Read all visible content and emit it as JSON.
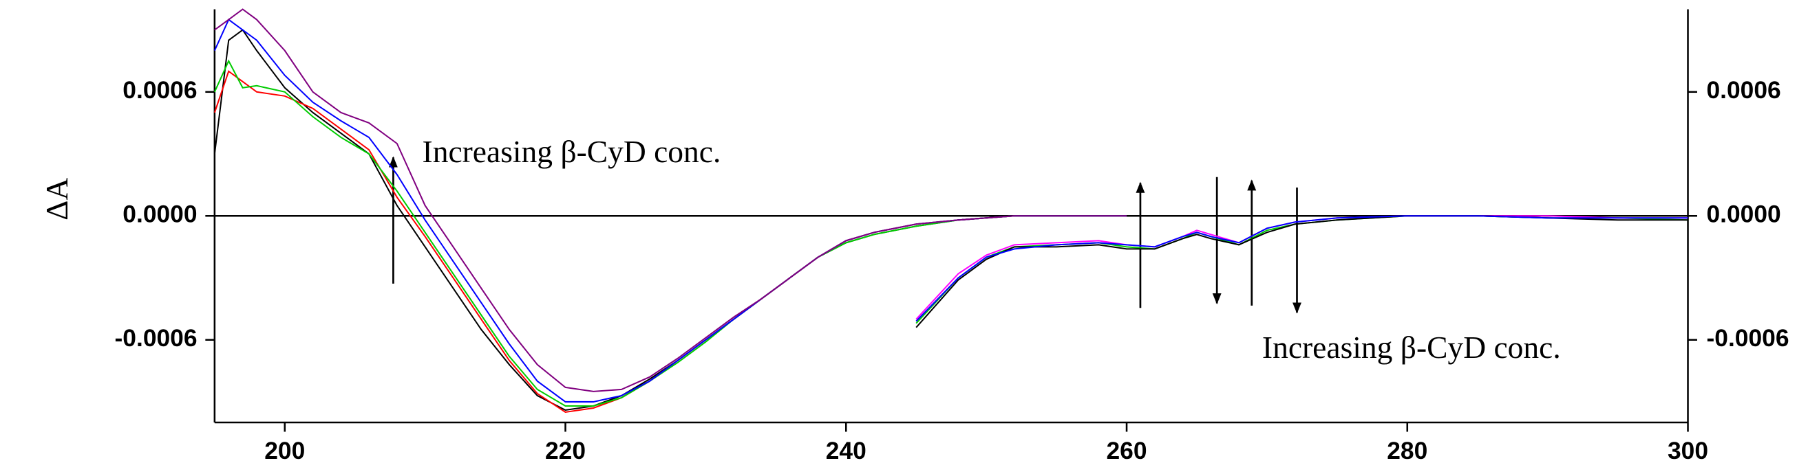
{
  "chart_data": {
    "type": "line",
    "ylabel": "ΔA",
    "annotations": [
      "Increasing β-CyD conc.",
      "Increasing β-CyD conc."
    ],
    "x": [
      195,
      196,
      197,
      198,
      200,
      202,
      204,
      206,
      208,
      210,
      212,
      214,
      216,
      218,
      220,
      222,
      224,
      226,
      228,
      230,
      232,
      234,
      236,
      238,
      240,
      242,
      245,
      248,
      250,
      252,
      255,
      258,
      260,
      262,
      264,
      265,
      266,
      268,
      270,
      272,
      275,
      280,
      285,
      290,
      295,
      300
    ],
    "xlim": [
      195,
      300
    ],
    "xticks": [
      200,
      220,
      240,
      260,
      280,
      300
    ],
    "ylim": [
      -0.001,
      0.001
    ],
    "yticks": [
      0.0006,
      {
        "value": 0,
        "label": "0.0000"
      },
      -0.0006
    ],
    "y2lim": [
      -0.001,
      0.001
    ],
    "y2ticks": [
      0.0006,
      {
        "value": 0,
        "label": "0.0000"
      },
      -0.0006
    ],
    "zero_line": true,
    "series": [
      {
        "color": "#000000",
        "values": [
          0.0003,
          0.00085,
          0.0009,
          0.0008,
          0.00062,
          0.0005,
          0.0004,
          0.0003,
          5e-05,
          -0.00015,
          -0.00035,
          -0.00055,
          -0.00072,
          -0.00087,
          -0.00094,
          -0.00092,
          -0.00087,
          -0.00079,
          -0.0007,
          -0.0006,
          -0.0005,
          -0.0004,
          -0.0003,
          -0.0002,
          -0.00013,
          -9e-05,
          -5e-05,
          -2e-05,
          -1e-05,
          0,
          0,
          0,
          0,
          null,
          null,
          null,
          null,
          null,
          null,
          null,
          null,
          null,
          null,
          null,
          null,
          null
        ]
      },
      {
        "color": "#ff0000",
        "values": [
          0.0005,
          0.0007,
          0.00065,
          0.0006,
          0.00058,
          0.00052,
          0.00042,
          0.00032,
          9e-05,
          -0.0001,
          -0.0003,
          -0.0005,
          -0.0007,
          -0.00086,
          -0.00095,
          -0.00093,
          -0.00088,
          -0.0008,
          -0.0007,
          -0.0006,
          -0.0005,
          -0.0004,
          -0.0003,
          -0.0002,
          -0.00012,
          -8e-05,
          -4e-05,
          -2e-05,
          -1e-05,
          0,
          0,
          0,
          0,
          null,
          null,
          null,
          null,
          null,
          null,
          null,
          null,
          null,
          null,
          null,
          null,
          null
        ]
      },
      {
        "color": "#00cc00",
        "values": [
          0.0006,
          0.00075,
          0.00062,
          0.00063,
          0.0006,
          0.00048,
          0.00038,
          0.0003,
          0.00012,
          -8e-05,
          -0.00028,
          -0.00048,
          -0.00068,
          -0.00084,
          -0.00092,
          -0.00092,
          -0.00088,
          -0.0008,
          -0.00071,
          -0.00061,
          -0.0005,
          -0.0004,
          -0.0003,
          -0.0002,
          -0.00013,
          -9e-05,
          -5e-05,
          -2e-05,
          -1e-05,
          0,
          0,
          0,
          0,
          null,
          null,
          null,
          null,
          null,
          null,
          null,
          null,
          null,
          null,
          null,
          null,
          null
        ]
      },
      {
        "color": "#0000ff",
        "values": [
          0.0008,
          0.00095,
          0.0009,
          0.00085,
          0.00068,
          0.00055,
          0.00046,
          0.00038,
          0.0002,
          -2e-05,
          -0.00022,
          -0.00042,
          -0.00062,
          -0.0008,
          -0.0009,
          -0.0009,
          -0.00087,
          -0.0008,
          -0.0007,
          -0.0006,
          -0.0005,
          -0.0004,
          -0.0003,
          -0.0002,
          -0.00012,
          -8e-05,
          -4e-05,
          -2e-05,
          -1e-05,
          0,
          0,
          0,
          0,
          null,
          null,
          null,
          null,
          null,
          null,
          null,
          null,
          null,
          null,
          null,
          null,
          null
        ]
      },
      {
        "color": "#800080",
        "values": [
          0.0009,
          0.00095,
          0.001,
          0.00095,
          0.0008,
          0.0006,
          0.0005,
          0.00045,
          0.00035,
          5e-05,
          -0.00015,
          -0.00035,
          -0.00055,
          -0.00072,
          -0.00083,
          -0.00085,
          -0.00084,
          -0.00078,
          -0.00069,
          -0.00059,
          -0.00049,
          -0.0004,
          -0.0003,
          -0.0002,
          -0.00012,
          -8e-05,
          -4e-05,
          -2e-05,
          -1e-05,
          0,
          0,
          0,
          0,
          null,
          null,
          null,
          null,
          null,
          null,
          null,
          null,
          null,
          null,
          null,
          null,
          null
        ]
      },
      {
        "color": "#00cc00",
        "values": [
          null,
          null,
          null,
          null,
          null,
          null,
          null,
          null,
          null,
          null,
          null,
          null,
          null,
          null,
          null,
          null,
          null,
          null,
          null,
          null,
          null,
          null,
          null,
          null,
          null,
          null,
          -0.00052,
          -0.0003,
          -0.0002,
          -0.00015,
          -0.00014,
          -0.00013,
          -0.00015,
          -0.00016,
          -0.00011,
          -8e-05,
          -0.0001,
          -0.00014,
          -7e-05,
          -4e-05,
          -2e-05,
          0,
          0,
          -1e-05,
          -1e-05,
          -2e-05
        ]
      },
      {
        "color": "#ff00ff",
        "values": [
          null,
          null,
          null,
          null,
          null,
          null,
          null,
          null,
          null,
          null,
          null,
          null,
          null,
          null,
          null,
          null,
          null,
          null,
          null,
          null,
          null,
          null,
          null,
          null,
          null,
          null,
          -0.0005,
          -0.00028,
          -0.00019,
          -0.00014,
          -0.00013,
          -0.00012,
          -0.00014,
          -0.00015,
          -0.0001,
          -7e-05,
          -9e-05,
          -0.00013,
          -6e-05,
          -3e-05,
          -1e-05,
          0,
          0,
          0,
          -1e-05,
          -1e-05
        ]
      },
      {
        "color": "#000000",
        "values": [
          null,
          null,
          null,
          null,
          null,
          null,
          null,
          null,
          null,
          null,
          null,
          null,
          null,
          null,
          null,
          null,
          null,
          null,
          null,
          null,
          null,
          null,
          null,
          null,
          null,
          null,
          -0.00054,
          -0.00031,
          -0.00021,
          -0.00015,
          -0.00015,
          -0.00014,
          -0.00016,
          -0.00016,
          -0.00011,
          -9e-05,
          -0.00011,
          -0.00014,
          -8e-05,
          -4e-05,
          -2e-05,
          0,
          0,
          -1e-05,
          -2e-05,
          -2e-05
        ]
      },
      {
        "color": "#0000ff",
        "values": [
          null,
          null,
          null,
          null,
          null,
          null,
          null,
          null,
          null,
          null,
          null,
          null,
          null,
          null,
          null,
          null,
          null,
          null,
          null,
          null,
          null,
          null,
          null,
          null,
          null,
          null,
          -0.00051,
          -0.0003,
          -0.0002,
          -0.00016,
          -0.00014,
          -0.00013,
          -0.00014,
          -0.00015,
          -0.0001,
          -8e-05,
          -0.0001,
          -0.00013,
          -6e-05,
          -3e-05,
          -1e-05,
          0,
          0,
          -1e-05,
          -1e-05,
          -1e-05
        ]
      }
    ]
  }
}
